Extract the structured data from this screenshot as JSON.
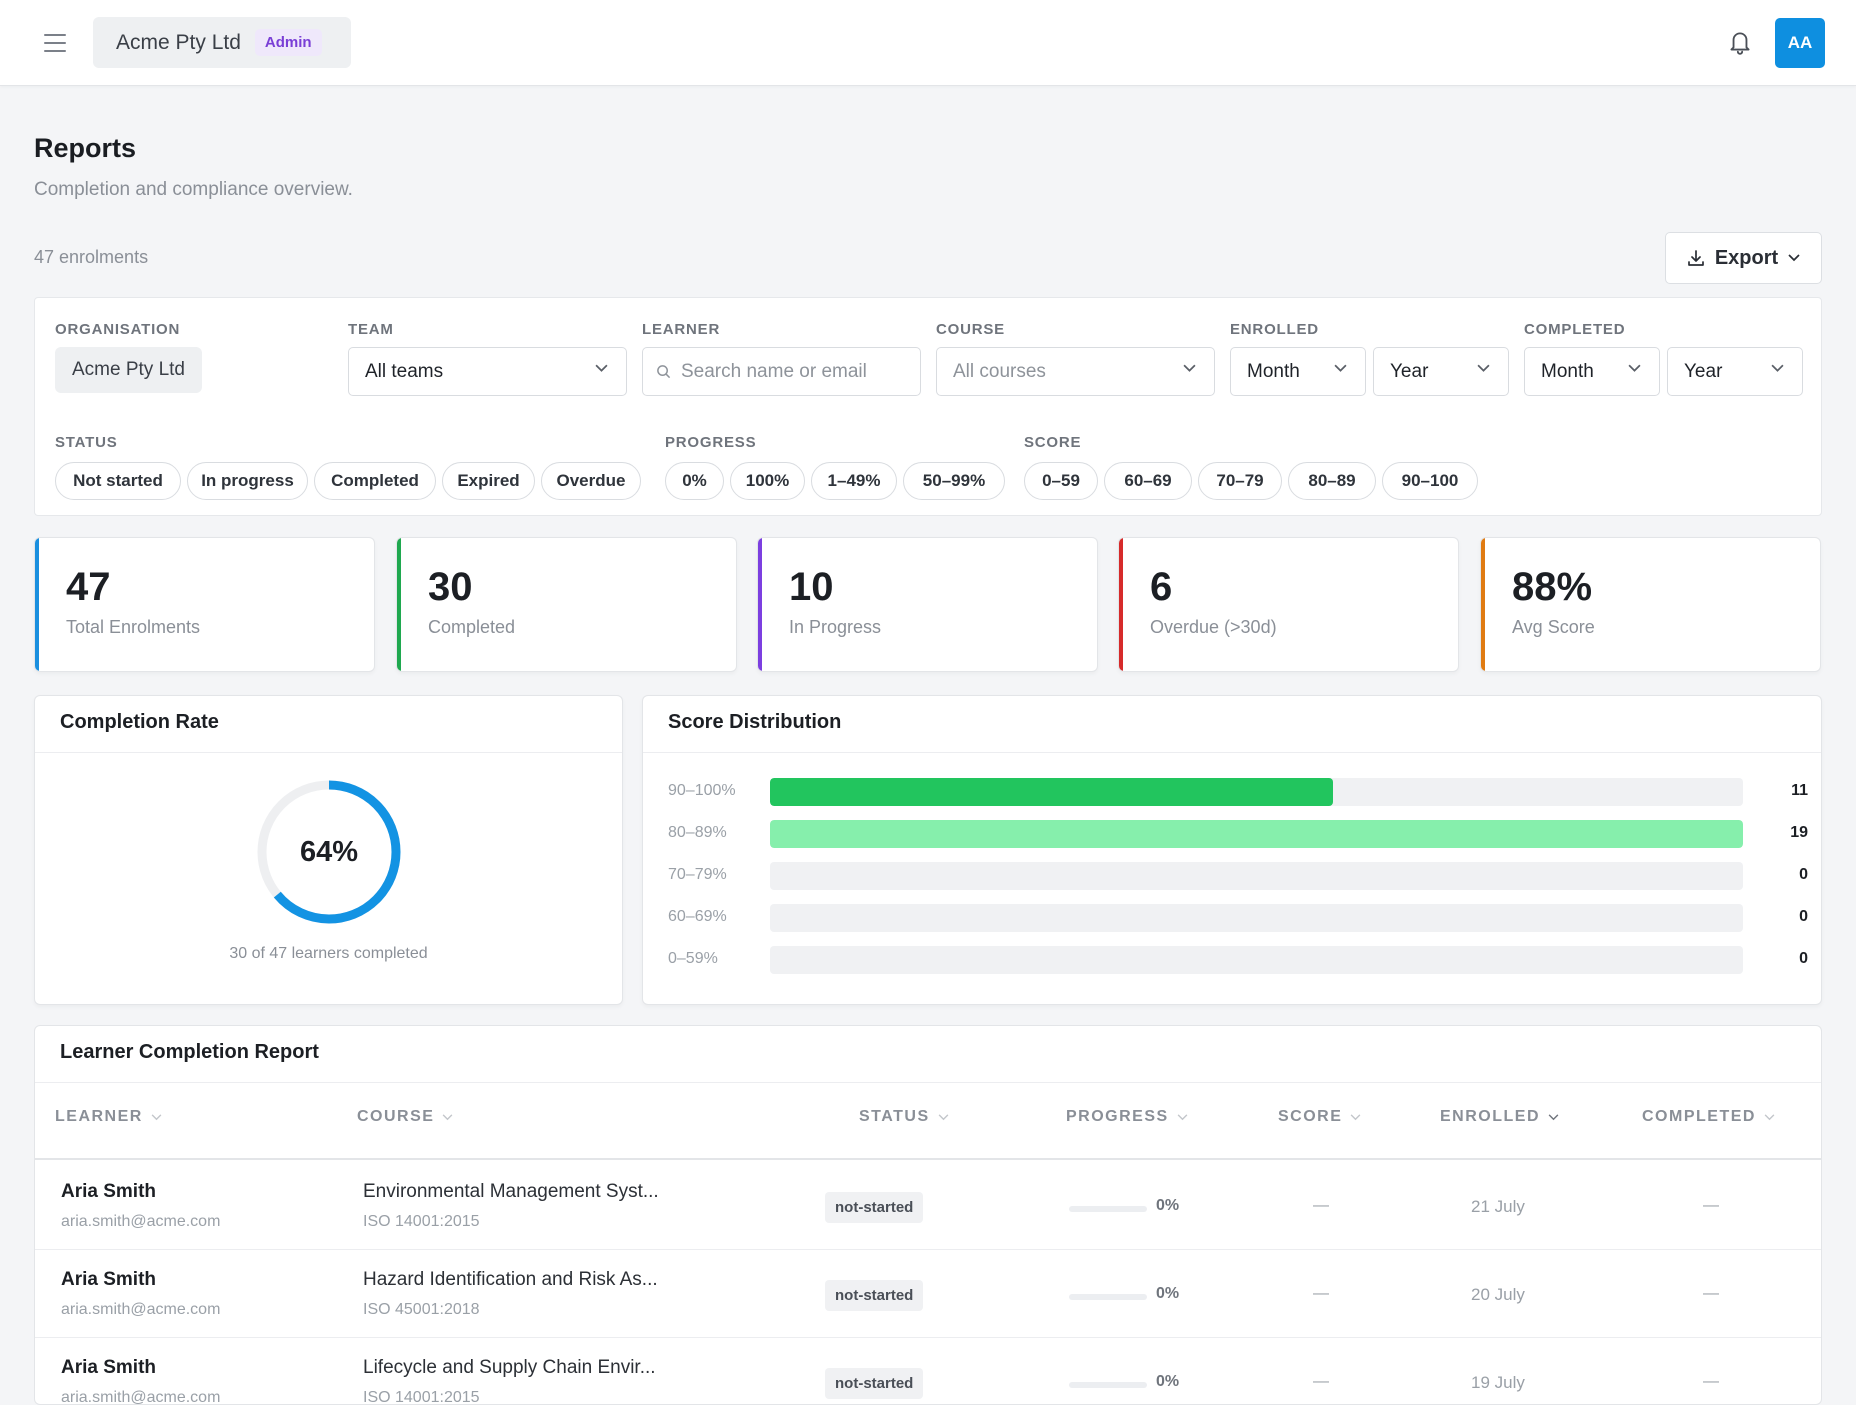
{
  "topbar": {
    "org_name": "Acme Pty Ltd",
    "role_badge": "Admin",
    "avatar_initials": "AA"
  },
  "header": {
    "title": "Reports",
    "subtitle": "Completion and compliance overview.",
    "enrolment_count": "47 enrolments",
    "export_label": "Export"
  },
  "filters": {
    "organisation": {
      "label": "ORGANISATION",
      "value": "Acme Pty Ltd"
    },
    "team": {
      "label": "TEAM",
      "value": "All teams"
    },
    "learner": {
      "label": "LEARNER",
      "placeholder": "Search name or email"
    },
    "course": {
      "label": "COURSE",
      "value": "All courses"
    },
    "enrolled": {
      "label": "ENROLLED",
      "month": "Month",
      "year": "Year"
    },
    "completed": {
      "label": "COMPLETED",
      "month": "Month",
      "year": "Year"
    },
    "status": {
      "label": "STATUS",
      "chips": [
        "Not started",
        "In progress",
        "Completed",
        "Expired",
        "Overdue"
      ]
    },
    "progress": {
      "label": "PROGRESS",
      "chips": [
        "0%",
        "100%",
        "1–49%",
        "50–99%"
      ]
    },
    "score": {
      "label": "SCORE",
      "chips": [
        "0–59",
        "60–69",
        "70–79",
        "80–89",
        "90–100"
      ]
    }
  },
  "stats": [
    {
      "value": "47",
      "label": "Total Enrolments",
      "color": "#1a8fdf"
    },
    {
      "value": "30",
      "label": "Completed",
      "color": "#1fa84f"
    },
    {
      "value": "10",
      "label": "In Progress",
      "color": "#7c3fe0"
    },
    {
      "value": "6",
      "label": "Overdue (>30d)",
      "color": "#d62a2a"
    },
    {
      "value": "88%",
      "label": "Avg Score",
      "color": "#e07b12"
    }
  ],
  "completion_rate": {
    "title": "Completion Rate",
    "percent_label": "64%",
    "fraction": 0.64,
    "caption": "30 of 47 learners completed",
    "color": "#1393e3"
  },
  "score_distribution": {
    "title": "Score Distribution",
    "max": 19,
    "rows": [
      {
        "label": "90–100%",
        "count": 11,
        "color": "#22c55e"
      },
      {
        "label": "80–89%",
        "count": 19,
        "color": "#86efac"
      },
      {
        "label": "70–79%",
        "count": 0,
        "color": "#22c55e"
      },
      {
        "label": "60–69%",
        "count": 0,
        "color": "#22c55e"
      },
      {
        "label": "0–59%",
        "count": 0,
        "color": "#22c55e"
      }
    ]
  },
  "table": {
    "title": "Learner Completion Report",
    "columns": [
      "LEARNER",
      "COURSE",
      "STATUS",
      "PROGRESS",
      "SCORE",
      "ENROLLED",
      "COMPLETED"
    ],
    "rows": [
      {
        "name": "Aria Smith",
        "email": "aria.smith@acme.com",
        "course": "Environmental Management Syst...",
        "code": "ISO 14001:2015",
        "status": "not-started",
        "progress": "0%",
        "score": "—",
        "enrolled": "21 July",
        "completed": "—"
      },
      {
        "name": "Aria Smith",
        "email": "aria.smith@acme.com",
        "course": "Hazard Identification and Risk As...",
        "code": "ISO 45001:2018",
        "status": "not-started",
        "progress": "0%",
        "score": "—",
        "enrolled": "20 July",
        "completed": "—"
      },
      {
        "name": "Aria Smith",
        "email": "aria.smith@acme.com",
        "course": "Lifecycle and Supply Chain Envir...",
        "code": "ISO 14001:2015",
        "status": "not-started",
        "progress": "0%",
        "score": "—",
        "enrolled": "19 July",
        "completed": "—"
      }
    ]
  }
}
